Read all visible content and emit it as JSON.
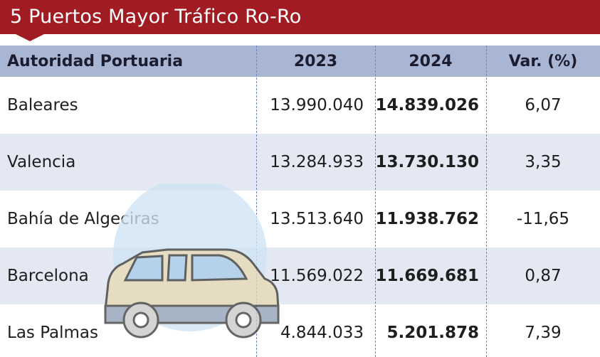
{
  "title": "5 Puertos Mayor Tráfico Ro-Ro",
  "table": {
    "headers": [
      "Autoridad Portuaria",
      "2023",
      "2024",
      "Var. (%)"
    ],
    "rows": [
      {
        "name": "Baleares",
        "y2023": "13.990.040",
        "y2024": "14.839.026",
        "var": "6,07"
      },
      {
        "name": "Valencia",
        "y2023": "13.284.933",
        "y2024": "13.730.130",
        "var": "3,35"
      },
      {
        "name": "Bahía de Algeciras",
        "y2023": "13.513.640",
        "y2024": "11.938.762",
        "var": "-11,65"
      },
      {
        "name": "Barcelona",
        "y2023": "11.569.022",
        "y2024": "11.669.681",
        "var": "0,87"
      },
      {
        "name": "Las Palmas",
        "y2023": "4.844.033",
        "y2024": "5.201.878",
        "var": "7,39"
      }
    ]
  },
  "illustration": {
    "icon": "car-icon",
    "colors": {
      "circle": "#cfe3f3",
      "body": "#e6d9b3",
      "window": "#a9cde8",
      "lower": "#8e9fb6",
      "wheel": "#c9c9c9",
      "outline": "#3a3a3a"
    }
  }
}
